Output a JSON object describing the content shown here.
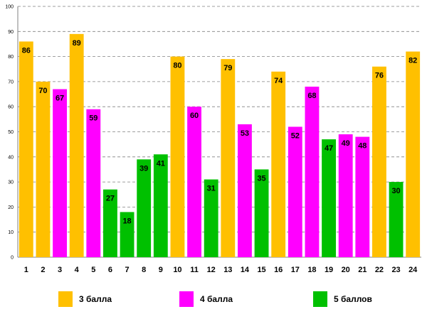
{
  "chart_data": {
    "type": "bar",
    "categories": [
      "1",
      "2",
      "3",
      "4",
      "5",
      "6",
      "7",
      "8",
      "9",
      "10",
      "11",
      "12",
      "13",
      "14",
      "15",
      "16",
      "17",
      "18",
      "19",
      "20",
      "21",
      "22",
      "23",
      "24"
    ],
    "values": [
      86,
      70,
      67,
      89,
      59,
      27,
      18,
      39,
      41,
      80,
      60,
      31,
      79,
      53,
      35,
      74,
      52,
      68,
      47,
      49,
      48,
      76,
      30,
      82
    ],
    "groups": [
      "3",
      "3",
      "4",
      "3",
      "4",
      "5",
      "5",
      "5",
      "5",
      "3",
      "4",
      "5",
      "3",
      "4",
      "5",
      "3",
      "4",
      "4",
      "5",
      "4",
      "4",
      "3",
      "5",
      "3"
    ],
    "ylim": [
      0,
      100
    ],
    "yticks": [
      0,
      10,
      20,
      30,
      40,
      50,
      60,
      70,
      80,
      90,
      100
    ],
    "grid": true,
    "legend_position": "bottom",
    "title": "",
    "xlabel": "",
    "ylabel": "",
    "legend": [
      {
        "key": "3",
        "label": "3 балла",
        "color": "#FFC000"
      },
      {
        "key": "4",
        "label": "4 балла",
        "color": "#FF00FF"
      },
      {
        "key": "5",
        "label": "5 баллов",
        "color": "#00C000"
      }
    ]
  }
}
